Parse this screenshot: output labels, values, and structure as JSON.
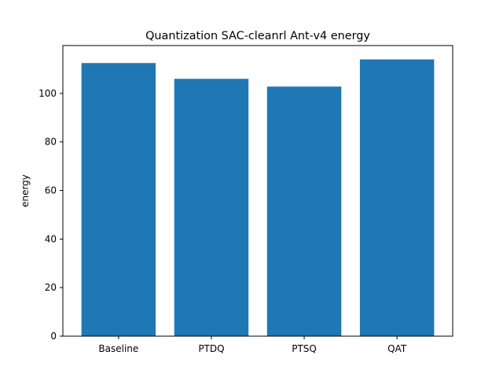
{
  "chart_data": {
    "type": "bar",
    "title": "Quantization SAC-cleanrl Ant-v4 energy",
    "xlabel": "",
    "ylabel": "energy",
    "categories": [
      "Baseline",
      "PTDQ",
      "PTSQ",
      "QAT"
    ],
    "values": [
      112.5,
      106.0,
      102.8,
      114.0
    ],
    "ylim": [
      0,
      119.7
    ],
    "yticks": [
      0,
      20,
      40,
      60,
      80,
      100
    ],
    "bar_color": "#1f77b4",
    "grid": false,
    "legend": "none"
  }
}
